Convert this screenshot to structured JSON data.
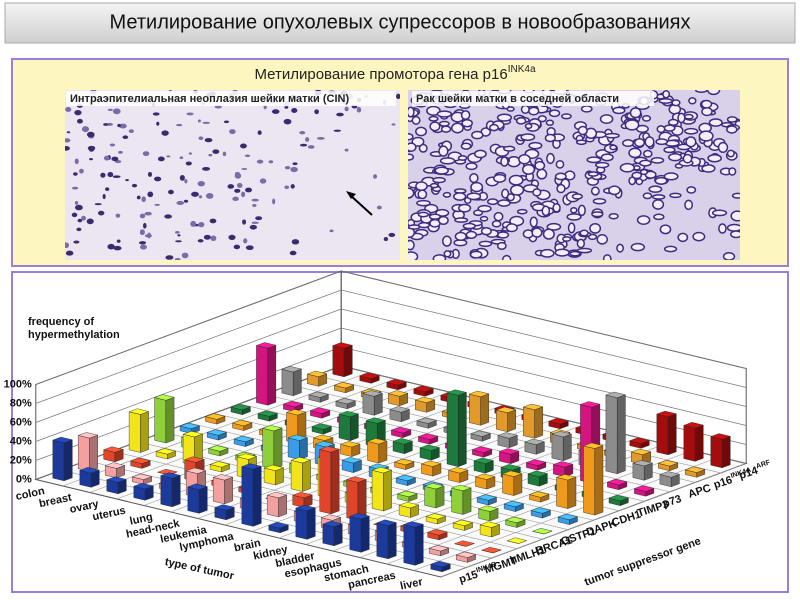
{
  "title": "Метилирование опухолевых супрессоров в новообразованиях",
  "panel": {
    "subtitle": "Метилирование промотора гена p16",
    "subtitle_sup": "INK4a",
    "images": [
      {
        "caption": "Интраэпителиальная неоплазия шейки матки (CIN)"
      },
      {
        "caption": "Рак шейки матки в соседней области"
      }
    ]
  },
  "chart_data": {
    "type": "bar3d",
    "y_label": [
      "frequency of",
      "hypermethylation"
    ],
    "x_label": "type of tumor",
    "z_label": "tumor suppressor gene",
    "categories": [
      "colon",
      "breast",
      "ovary",
      "uterus",
      "lung",
      "head-neck",
      "leukemia",
      "lymphoma",
      "brain",
      "kidney",
      "bladder",
      "esophagus",
      "stomach",
      "pancreas",
      "liver"
    ],
    "ylim": [
      0,
      100
    ],
    "yticks": [
      {
        "value": 0,
        "label": "0%"
      },
      {
        "value": 20,
        "label": "20%"
      },
      {
        "value": 40,
        "label": "40%"
      },
      {
        "value": 60,
        "label": "60%"
      },
      {
        "value": 80,
        "label": "80%"
      },
      {
        "value": 100,
        "label": "100%"
      }
    ],
    "grid": true,
    "series": [
      {
        "name": "p15",
        "sup": "INK4B",
        "color": "#1c3a9c",
        "values": [
          40,
          15,
          12,
          12,
          30,
          25,
          10,
          60,
          5,
          30,
          20,
          35,
          35,
          40,
          5
        ]
      },
      {
        "name": "MGMT",
        "color": "#f4a0a0",
        "values": [
          35,
          10,
          5,
          5,
          25,
          25,
          10,
          20,
          10,
          10,
          10,
          10,
          5,
          5,
          5
        ]
      },
      {
        "name": "hMLH1",
        "color": "#e0452a",
        "values": [
          10,
          5,
          0,
          20,
          5,
          5,
          0,
          10,
          65,
          40,
          0,
          5,
          5,
          0,
          0
        ]
      },
      {
        "name": "BRCA1",
        "color": "#f2e418",
        "values": [
          40,
          5,
          30,
          5,
          20,
          15,
          30,
          40,
          10,
          40,
          10,
          5,
          5,
          10,
          0
        ]
      },
      {
        "name": "GSTP1",
        "color": "#8fd03a",
        "values": [
          45,
          10,
          5,
          5,
          40,
          10,
          5,
          5,
          5,
          5,
          20,
          25,
          10,
          5,
          0
        ]
      },
      {
        "name": "DAPK",
        "color": "#3a9ce8",
        "values": [
          5,
          5,
          5,
          5,
          20,
          20,
          10,
          10,
          5,
          5,
          5,
          5,
          5,
          5,
          5
        ]
      },
      {
        "name": "CDH1",
        "color": "#f09a1c",
        "values": [
          5,
          5,
          5,
          30,
          10,
          10,
          20,
          5,
          10,
          10,
          10,
          20,
          5,
          30,
          70
        ]
      },
      {
        "name": "TIMP3",
        "color": "#1d7a3c",
        "values": [
          5,
          5,
          5,
          5,
          25,
          25,
          10,
          10,
          75,
          10,
          10,
          10,
          5,
          5,
          5
        ]
      },
      {
        "name": "p73",
        "color": "#d2157f",
        "values": [
          60,
          5,
          5,
          5,
          5,
          5,
          5,
          5,
          5,
          10,
          5,
          10,
          80,
          5,
          5
        ]
      },
      {
        "name": "APC",
        "color": "#8c8c8c",
        "values": [
          25,
          5,
          5,
          20,
          10,
          5,
          5,
          5,
          10,
          10,
          25,
          15,
          80,
          15,
          10
        ]
      },
      {
        "name": "p16",
        "sup": "INK4A",
        "color": "#e29a2a",
        "values": [
          10,
          5,
          5,
          10,
          10,
          5,
          30,
          20,
          30,
          10,
          5,
          5,
          10,
          5,
          5
        ]
      },
      {
        "name": "p14",
        "sup": "ARF",
        "color": "#a50c0c",
        "values": [
          30,
          5,
          5,
          5,
          5,
          5,
          5,
          5,
          5,
          5,
          5,
          5,
          40,
          35,
          30
        ]
      }
    ]
  }
}
